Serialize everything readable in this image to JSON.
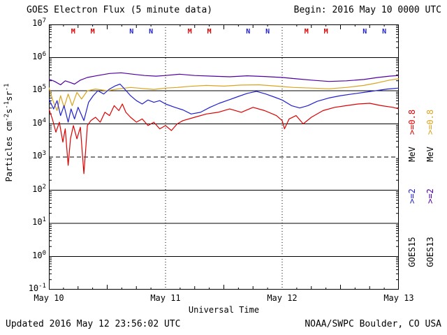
{
  "header": {
    "title": "GOES Electron Flux (5 minute data)",
    "begin": "Begin: 2016 May 10 0000 UTC"
  },
  "footer": {
    "updated": "Updated 2016 May 12 23:56:02 UTC",
    "source": "NOAA/SWPC Boulder, CO USA"
  },
  "legend": {
    "columns": [
      {
        "sat": "GOES15",
        "flux08": ">=0.8",
        "unit": "MeV",
        "flux2": ">=2",
        "color08": "#dd0000",
        "color2": "#2020d0"
      },
      {
        "sat": "GOES13",
        "flux08": ">=0.8",
        "unit": "MeV",
        "flux2": ">=2",
        "color08": "#d9a520",
        "color2": "#4e00a0"
      }
    ]
  },
  "chart_data": {
    "type": "line",
    "title": "GOES Electron Flux (5 minute data)",
    "xlabel": "Universal Time",
    "ylabel": "Particles cm^-2 s^-1 sr^-1",
    "ylabel_parts": [
      [
        "t",
        "Particles cm"
      ],
      [
        "s",
        "-2"
      ],
      [
        "t",
        "s"
      ],
      [
        "s",
        "-1"
      ],
      [
        "t",
        "sr"
      ],
      [
        "s",
        "-1"
      ]
    ],
    "x_unit": "days since 2016 May 10 0000 UTC",
    "xlim_days": [
      0,
      3
    ],
    "ylog10_lim": [
      -1,
      7
    ],
    "y_scale": "log10",
    "dashed_threshold_log10": 3,
    "vertical_dotted_days": [
      1,
      2
    ],
    "x_ticks": [
      {
        "label": "May 10",
        "day": 0
      },
      {
        "label": "May 11",
        "day": 1
      },
      {
        "label": "May 12",
        "day": 2
      },
      {
        "label": "May 13",
        "day": 3
      }
    ],
    "y_ticks": [
      {
        "exp": "7",
        "log": 7
      },
      {
        "exp": "6",
        "log": 6
      },
      {
        "exp": "5",
        "log": 5
      },
      {
        "exp": "4",
        "log": 4
      },
      {
        "exp": "3",
        "log": 3
      },
      {
        "exp": "2",
        "log": 2
      },
      {
        "exp": "1",
        "log": 1
      },
      {
        "exp": "0",
        "log": 0
      },
      {
        "exp": "-1",
        "log": -1
      }
    ],
    "series": [
      {
        "key": "goes13-e2",
        "name": "GOES13 >=2 MeV",
        "color": "#4e00a0",
        "points_format": [
          "day",
          "log10_flux"
        ],
        "points": [
          [
            0.0,
            5.35
          ],
          [
            0.05,
            5.28
          ],
          [
            0.1,
            5.18
          ],
          [
            0.14,
            5.3
          ],
          [
            0.18,
            5.25
          ],
          [
            0.22,
            5.2
          ],
          [
            0.27,
            5.32
          ],
          [
            0.33,
            5.4
          ],
          [
            0.42,
            5.46
          ],
          [
            0.52,
            5.52
          ],
          [
            0.62,
            5.54
          ],
          [
            0.72,
            5.5
          ],
          [
            0.82,
            5.46
          ],
          [
            0.92,
            5.44
          ],
          [
            1.0,
            5.46
          ],
          [
            1.12,
            5.5
          ],
          [
            1.25,
            5.46
          ],
          [
            1.4,
            5.44
          ],
          [
            1.55,
            5.42
          ],
          [
            1.7,
            5.45
          ],
          [
            1.85,
            5.43
          ],
          [
            2.0,
            5.4
          ],
          [
            2.12,
            5.36
          ],
          [
            2.25,
            5.32
          ],
          [
            2.4,
            5.28
          ],
          [
            2.55,
            5.3
          ],
          [
            2.7,
            5.34
          ],
          [
            2.82,
            5.4
          ],
          [
            2.92,
            5.44
          ],
          [
            3.0,
            5.46
          ]
        ]
      },
      {
        "key": "goes13-e08",
        "name": "GOES13 >=0.8 MeV",
        "color": "#d9a520",
        "points_format": [
          "day",
          "log10_flux"
        ],
        "points": [
          [
            0.0,
            5.1
          ],
          [
            0.035,
            4.7
          ],
          [
            0.07,
            4.4
          ],
          [
            0.1,
            4.85
          ],
          [
            0.13,
            4.5
          ],
          [
            0.165,
            4.9
          ],
          [
            0.2,
            4.55
          ],
          [
            0.24,
            4.95
          ],
          [
            0.28,
            4.75
          ],
          [
            0.33,
            5.0
          ],
          [
            0.4,
            5.05
          ],
          [
            0.5,
            5.0
          ],
          [
            0.6,
            5.06
          ],
          [
            0.7,
            5.1
          ],
          [
            0.8,
            5.07
          ],
          [
            0.9,
            5.04
          ],
          [
            1.0,
            5.08
          ],
          [
            1.1,
            5.1
          ],
          [
            1.2,
            5.13
          ],
          [
            1.35,
            5.16
          ],
          [
            1.5,
            5.14
          ],
          [
            1.65,
            5.17
          ],
          [
            1.8,
            5.18
          ],
          [
            1.95,
            5.14
          ],
          [
            2.1,
            5.1
          ],
          [
            2.25,
            5.08
          ],
          [
            2.4,
            5.06
          ],
          [
            2.55,
            5.1
          ],
          [
            2.7,
            5.16
          ],
          [
            2.82,
            5.24
          ],
          [
            2.92,
            5.32
          ],
          [
            3.0,
            5.36
          ]
        ]
      },
      {
        "key": "goes15-e2",
        "name": "GOES15 >=2 MeV",
        "color": "#2020d0",
        "points_format": [
          "day",
          "log10_flux"
        ],
        "points": [
          [
            0.0,
            4.75
          ],
          [
            0.04,
            4.45
          ],
          [
            0.07,
            4.7
          ],
          [
            0.1,
            4.25
          ],
          [
            0.13,
            4.55
          ],
          [
            0.165,
            4.05
          ],
          [
            0.19,
            4.45
          ],
          [
            0.22,
            4.15
          ],
          [
            0.25,
            4.5
          ],
          [
            0.3,
            4.1
          ],
          [
            0.34,
            4.65
          ],
          [
            0.38,
            4.85
          ],
          [
            0.42,
            5.0
          ],
          [
            0.47,
            4.9
          ],
          [
            0.52,
            5.05
          ],
          [
            0.57,
            5.15
          ],
          [
            0.61,
            5.2
          ],
          [
            0.65,
            5.05
          ],
          [
            0.7,
            4.85
          ],
          [
            0.75,
            4.7
          ],
          [
            0.8,
            4.6
          ],
          [
            0.85,
            4.72
          ],
          [
            0.9,
            4.65
          ],
          [
            0.95,
            4.7
          ],
          [
            1.0,
            4.6
          ],
          [
            1.08,
            4.5
          ],
          [
            1.15,
            4.42
          ],
          [
            1.22,
            4.3
          ],
          [
            1.3,
            4.35
          ],
          [
            1.38,
            4.5
          ],
          [
            1.46,
            4.62
          ],
          [
            1.54,
            4.72
          ],
          [
            1.62,
            4.82
          ],
          [
            1.7,
            4.92
          ],
          [
            1.78,
            4.98
          ],
          [
            1.86,
            4.9
          ],
          [
            1.94,
            4.8
          ],
          [
            2.0,
            4.72
          ],
          [
            2.08,
            4.55
          ],
          [
            2.15,
            4.48
          ],
          [
            2.22,
            4.55
          ],
          [
            2.3,
            4.68
          ],
          [
            2.4,
            4.78
          ],
          [
            2.5,
            4.85
          ],
          [
            2.6,
            4.9
          ],
          [
            2.7,
            4.95
          ],
          [
            2.8,
            5.0
          ],
          [
            2.9,
            5.05
          ],
          [
            3.0,
            5.08
          ]
        ]
      },
      {
        "key": "goes15-e08",
        "name": "GOES15 >=0.8 MeV",
        "color": "#dd0000",
        "points_format": [
          "day",
          "log10_flux"
        ],
        "points": [
          [
            0.0,
            4.45
          ],
          [
            0.03,
            4.15
          ],
          [
            0.06,
            3.75
          ],
          [
            0.09,
            4.05
          ],
          [
            0.12,
            3.45
          ],
          [
            0.14,
            3.85
          ],
          [
            0.165,
            2.75
          ],
          [
            0.185,
            3.55
          ],
          [
            0.21,
            3.95
          ],
          [
            0.24,
            3.55
          ],
          [
            0.27,
            3.9
          ],
          [
            0.3,
            2.5
          ],
          [
            0.315,
            3.2
          ],
          [
            0.33,
            3.95
          ],
          [
            0.36,
            4.1
          ],
          [
            0.4,
            4.2
          ],
          [
            0.44,
            4.05
          ],
          [
            0.48,
            4.35
          ],
          [
            0.52,
            4.25
          ],
          [
            0.56,
            4.55
          ],
          [
            0.6,
            4.4
          ],
          [
            0.63,
            4.6
          ],
          [
            0.66,
            4.35
          ],
          [
            0.7,
            4.2
          ],
          [
            0.75,
            4.05
          ],
          [
            0.8,
            4.15
          ],
          [
            0.85,
            3.95
          ],
          [
            0.9,
            4.05
          ],
          [
            0.95,
            3.85
          ],
          [
            1.0,
            3.95
          ],
          [
            1.05,
            3.8
          ],
          [
            1.1,
            4.0
          ],
          [
            1.15,
            4.1
          ],
          [
            1.25,
            4.2
          ],
          [
            1.35,
            4.3
          ],
          [
            1.45,
            4.35
          ],
          [
            1.55,
            4.45
          ],
          [
            1.65,
            4.35
          ],
          [
            1.75,
            4.5
          ],
          [
            1.85,
            4.4
          ],
          [
            1.95,
            4.25
          ],
          [
            2.0,
            4.1
          ],
          [
            2.02,
            3.85
          ],
          [
            2.06,
            4.15
          ],
          [
            2.12,
            4.25
          ],
          [
            2.18,
            4.0
          ],
          [
            2.25,
            4.2
          ],
          [
            2.35,
            4.4
          ],
          [
            2.45,
            4.5
          ],
          [
            2.55,
            4.55
          ],
          [
            2.65,
            4.6
          ],
          [
            2.75,
            4.62
          ],
          [
            2.85,
            4.55
          ],
          [
            2.95,
            4.5
          ],
          [
            3.0,
            4.45
          ]
        ]
      }
    ],
    "markers": [
      {
        "letter": "M",
        "day": 0.208,
        "color": "#dd0000"
      },
      {
        "letter": "M",
        "day": 0.375,
        "color": "#dd0000"
      },
      {
        "letter": "N",
        "day": 0.708,
        "color": "#2020d0"
      },
      {
        "letter": "N",
        "day": 0.875,
        "color": "#2020d0"
      },
      {
        "letter": "M",
        "day": 1.208,
        "color": "#dd0000"
      },
      {
        "letter": "M",
        "day": 1.375,
        "color": "#dd0000"
      },
      {
        "letter": "N",
        "day": 1.708,
        "color": "#2020d0"
      },
      {
        "letter": "N",
        "day": 1.875,
        "color": "#2020d0"
      },
      {
        "letter": "M",
        "day": 2.208,
        "color": "#dd0000"
      },
      {
        "letter": "M",
        "day": 2.375,
        "color": "#dd0000"
      },
      {
        "letter": "N",
        "day": 2.708,
        "color": "#2020d0"
      },
      {
        "letter": "N",
        "day": 2.875,
        "color": "#2020d0"
      }
    ]
  }
}
